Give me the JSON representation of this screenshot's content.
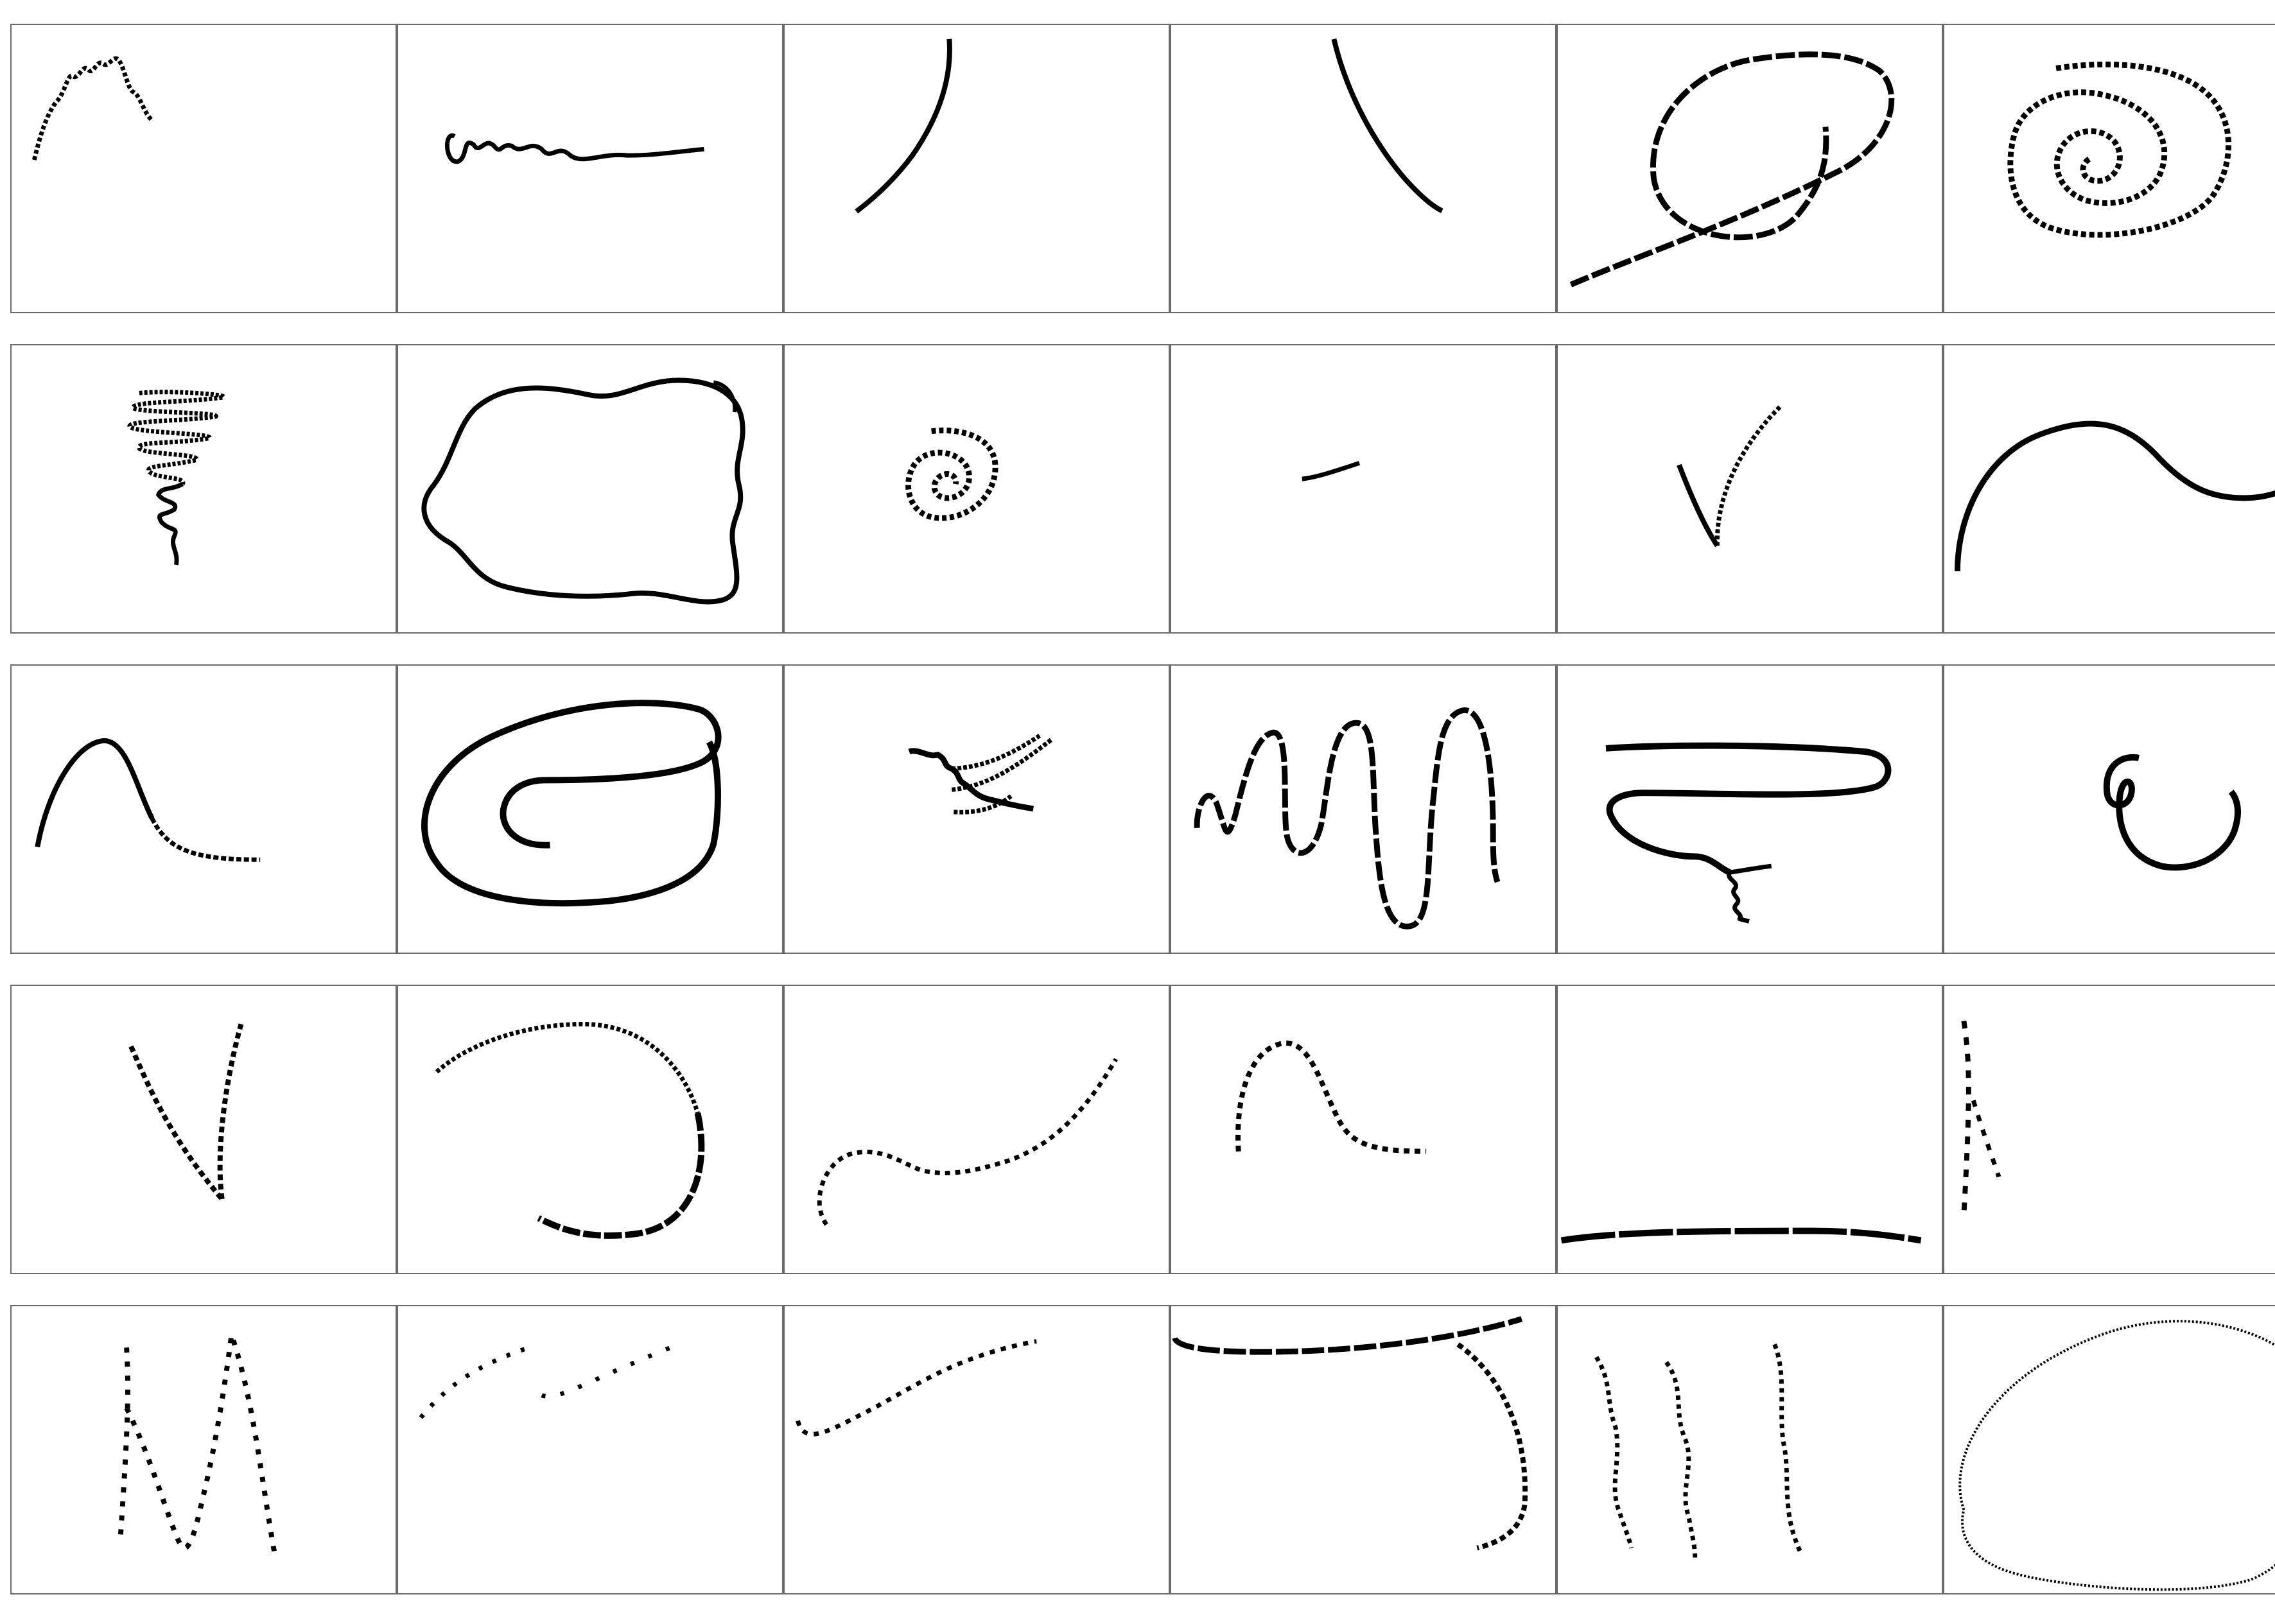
{
  "grid": {
    "rows": 5,
    "columns": 6,
    "ink_color": "#000000",
    "border_color": "#6a6a6a",
    "background": "#ffffff"
  },
  "sketches": [
    [
      "squiggle-m",
      "cursive-scribble",
      "arc-left",
      "arc-right",
      "loop-with-tail",
      "spiral-large"
    ],
    [
      "zigzag-tornado",
      "blob-outline",
      "spiral-small",
      "short-dash",
      "check-mark",
      "wave-s"
    ],
    [
      "hump-curve",
      "spiral-open-oval",
      "zigzag-crossed",
      "meander-wave",
      "hook-with-zigzag",
      "curl-loop"
    ],
    [
      "v-shape",
      "hook-arc",
      "s-curve",
      "hump-small",
      "horizontal-line",
      "vertical-strokes"
    ],
    [
      "letter-m",
      "dotted-dashes",
      "rising-curve",
      "hook-corner",
      "three-wavy-lines",
      "oval-large"
    ]
  ]
}
